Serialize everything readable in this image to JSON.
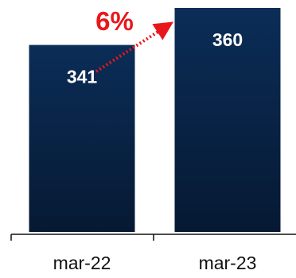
{
  "chart_data": {
    "type": "bar",
    "title": "",
    "xlabel": "",
    "ylabel": "",
    "categories": [
      "mar-22",
      "mar-23"
    ],
    "values": [
      341,
      360
    ],
    "data_labels": [
      "341",
      "360"
    ],
    "ylim": [
      245,
      360
    ],
    "grid": false,
    "legend": "none",
    "annotation": {
      "text": "6%",
      "from_category": "mar-22",
      "to_category": "mar-23",
      "style": "dotted-arrow"
    }
  },
  "colors": {
    "bar_top": "#0b2d57",
    "bar_bottom": "#061933",
    "label_color": "#ffffff",
    "axis_color": "#111111",
    "annotation_color": "#e8171b"
  }
}
